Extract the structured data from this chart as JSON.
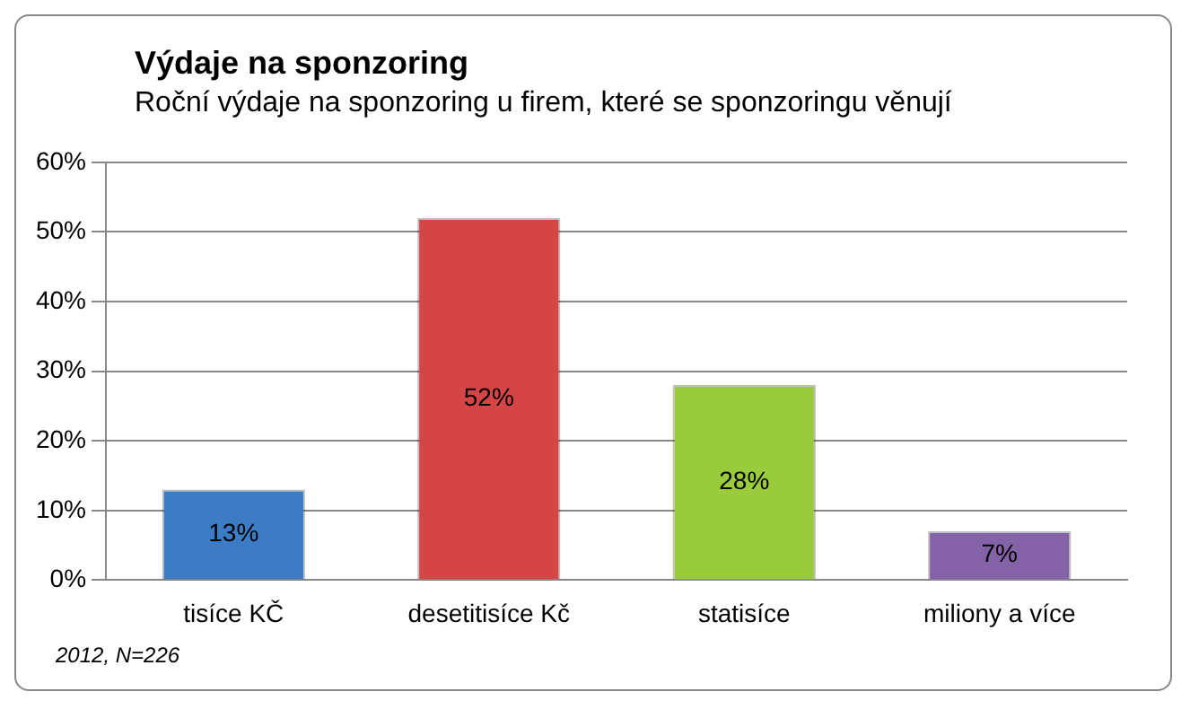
{
  "chart_data": {
    "type": "bar",
    "title": "Výdaje na sponzoring",
    "subtitle": "Roční výdaje na sponzoring u firem, které se sponzoringu věnují",
    "categories": [
      "tisíce KČ",
      "desetitisíce Kč",
      "statisíce",
      "miliony a více"
    ],
    "values": [
      13,
      52,
      28,
      7
    ],
    "colors": [
      "#3c7cc4",
      "#d64545",
      "#9acb3c",
      "#8462a8"
    ],
    "value_labels": [
      "13%",
      "52%",
      "28%",
      "7%"
    ],
    "ylim": [
      0,
      60
    ],
    "yticks": [
      {
        "value": 0,
        "label": "0%"
      },
      {
        "value": 10,
        "label": "10%"
      },
      {
        "value": 20,
        "label": "20%"
      },
      {
        "value": 30,
        "label": "30%"
      },
      {
        "value": 40,
        "label": "40%"
      },
      {
        "value": 50,
        "label": "50%"
      },
      {
        "value": 60,
        "label": "60%"
      }
    ],
    "grid": "y",
    "annotations": [
      "2012, N=226"
    ]
  }
}
